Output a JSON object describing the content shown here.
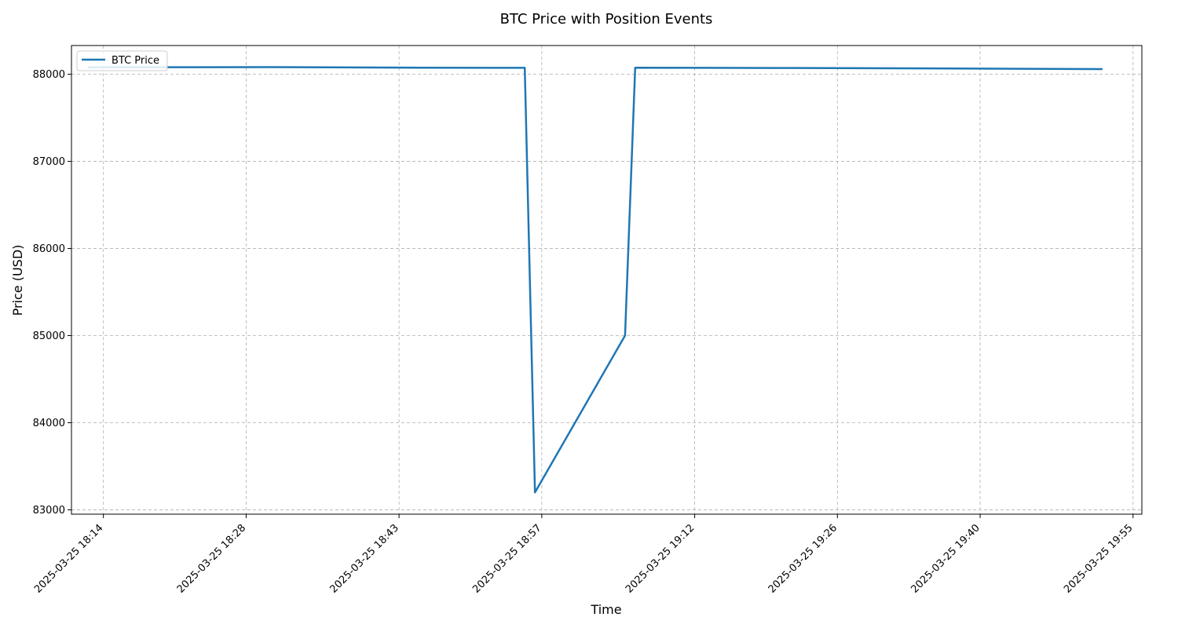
{
  "chart_data": {
    "type": "line",
    "title": "BTC Price with Position Events",
    "xlabel": "Time",
    "ylabel": "Price (USD)",
    "grid": true,
    "legend_position": "top-left",
    "ylim": [
      82950,
      88330
    ],
    "xlim": [
      "2025-03-25 18:10:52",
      "2025-03-25 19:55:52"
    ],
    "y_ticks": [
      83000,
      84000,
      85000,
      86000,
      87000,
      88000
    ],
    "x_ticks": [
      {
        "t": "2025-03-25 18:14:00",
        "label": "2025-03-25 18:14"
      },
      {
        "t": "2025-03-25 18:28:00",
        "label": "2025-03-25 18:28"
      },
      {
        "t": "2025-03-25 18:43:00",
        "label": "2025-03-25 18:43"
      },
      {
        "t": "2025-03-25 18:57:00",
        "label": "2025-03-25 18:57"
      },
      {
        "t": "2025-03-25 19:12:00",
        "label": "2025-03-25 19:12"
      },
      {
        "t": "2025-03-25 19:26:00",
        "label": "2025-03-25 19:26"
      },
      {
        "t": "2025-03-25 19:40:00",
        "label": "2025-03-25 19:40"
      },
      {
        "t": "2025-03-25 19:55:00",
        "label": "2025-03-25 19:55"
      }
    ],
    "series": [
      {
        "name": "BTC Price",
        "color": "#1f77b4",
        "points": [
          {
            "x": "2025-03-25 18:12:30",
            "y": 88080
          },
          {
            "x": "2025-03-25 18:30:00",
            "y": 88082
          },
          {
            "x": "2025-03-25 18:45:00",
            "y": 88076
          },
          {
            "x": "2025-03-25 18:52:00",
            "y": 88074
          },
          {
            "x": "2025-03-25 18:55:20",
            "y": 88074
          },
          {
            "x": "2025-03-25 18:56:20",
            "y": 83200
          },
          {
            "x": "2025-03-25 19:05:10",
            "y": 85000
          },
          {
            "x": "2025-03-25 19:06:10",
            "y": 88075
          },
          {
            "x": "2025-03-25 19:20:00",
            "y": 88072
          },
          {
            "x": "2025-03-25 19:35:00",
            "y": 88068
          },
          {
            "x": "2025-03-25 19:52:00",
            "y": 88060
          }
        ]
      }
    ]
  }
}
